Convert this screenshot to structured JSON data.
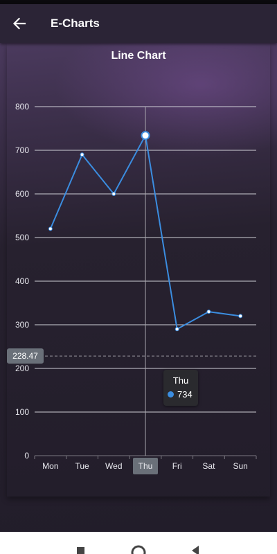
{
  "app": {
    "title": "E-Charts"
  },
  "chart_data": {
    "type": "line",
    "title": "Line Chart",
    "categories": [
      "Mon",
      "Tue",
      "Wed",
      "Thu",
      "Fri",
      "Sat",
      "Sun"
    ],
    "series": [
      {
        "values": [
          520,
          690,
          600,
          734,
          290,
          330,
          320
        ],
        "color": "#3b8de0"
      }
    ],
    "ylim": [
      0,
      800
    ],
    "yticks": [
      0,
      100,
      200,
      300,
      400,
      500,
      600,
      700,
      800
    ],
    "grid": true,
    "crosshair": {
      "category": "Thu",
      "y_value": 228.47,
      "y_label": "228.47"
    },
    "tooltip": {
      "title": "Thu",
      "value": "734"
    }
  },
  "colors": {
    "accent": "#3b8de0",
    "appbar": "#2b2436",
    "background": "#221d2a"
  },
  "icons": {
    "back": "arrow-left-icon",
    "nav_recents": "square-icon",
    "nav_home": "circle-icon",
    "nav_back": "triangle-left-icon"
  }
}
